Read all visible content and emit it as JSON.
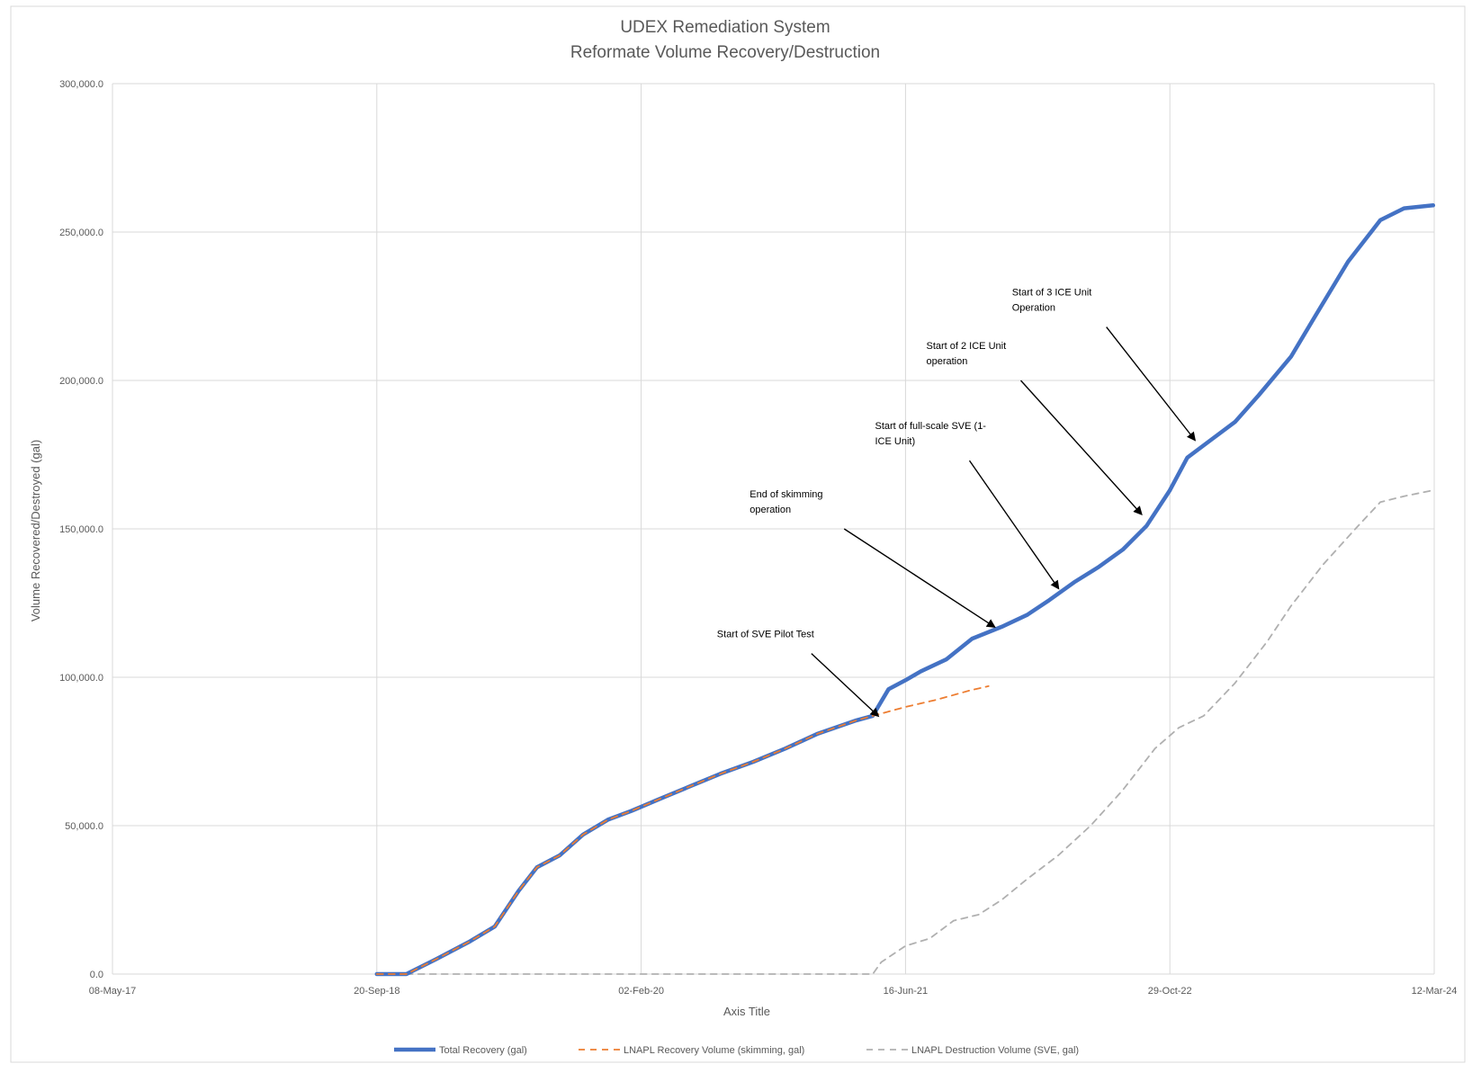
{
  "chart_data": {
    "type": "line",
    "title": "UDEX Remediation System",
    "subtitle": "Reformate Volume Recovery/Destruction",
    "xlabel": "Axis Title",
    "ylabel": "Volume Recovered/Destroyed (gal)",
    "x_range": [
      "2017-05-08",
      "2024-03-12"
    ],
    "ylim": [
      0,
      300000
    ],
    "x_ticks": [
      {
        "date": "2017-05-08",
        "label": "08-May-17"
      },
      {
        "date": "2018-09-20",
        "label": "20-Sep-18"
      },
      {
        "date": "2020-02-02",
        "label": "02-Feb-20"
      },
      {
        "date": "2021-06-16",
        "label": "16-Jun-21"
      },
      {
        "date": "2022-10-29",
        "label": "29-Oct-22"
      },
      {
        "date": "2024-03-12",
        "label": "12-Mar-24"
      }
    ],
    "y_ticks": [
      {
        "value": 0,
        "label": "0.0"
      },
      {
        "value": 50000,
        "label": "50,000.0"
      },
      {
        "value": 100000,
        "label": "100,000.0"
      },
      {
        "value": 150000,
        "label": "150,000.0"
      },
      {
        "value": 200000,
        "label": "200,000.0"
      },
      {
        "value": 250000,
        "label": "250,000.0"
      },
      {
        "value": 300000,
        "label": "300,000.0"
      }
    ],
    "grid": true,
    "legend_position": "bottom",
    "series": [
      {
        "name": "Total Recovery (gal)",
        "color": "#4472c4",
        "style": "solid",
        "points": [
          [
            "2018-09-20",
            0
          ],
          [
            "2018-11-15",
            0
          ],
          [
            "2019-01-10",
            5000
          ],
          [
            "2019-03-15",
            11000
          ],
          [
            "2019-05-01",
            16000
          ],
          [
            "2019-06-15",
            28000
          ],
          [
            "2019-07-20",
            36000
          ],
          [
            "2019-09-01",
            40000
          ],
          [
            "2019-10-15",
            47000
          ],
          [
            "2019-12-01",
            52000
          ],
          [
            "2020-01-15",
            55000
          ],
          [
            "2020-03-01",
            58500
          ],
          [
            "2020-05-01",
            63000
          ],
          [
            "2020-07-01",
            67500
          ],
          [
            "2020-09-01",
            71500
          ],
          [
            "2020-11-01",
            76000
          ],
          [
            "2021-01-01",
            81000
          ],
          [
            "2021-03-15",
            85500
          ],
          [
            "2021-04-15",
            87000
          ],
          [
            "2021-05-15",
            96000
          ],
          [
            "2021-06-16",
            99000
          ],
          [
            "2021-07-15",
            102000
          ],
          [
            "2021-09-01",
            106000
          ],
          [
            "2021-10-20",
            113000
          ],
          [
            "2021-12-15",
            117000
          ],
          [
            "2022-02-01",
            121000
          ],
          [
            "2022-03-15",
            126000
          ],
          [
            "2022-05-01",
            132000
          ],
          [
            "2022-06-15",
            137000
          ],
          [
            "2022-08-01",
            143000
          ],
          [
            "2022-09-15",
            151000
          ],
          [
            "2022-10-29",
            163000
          ],
          [
            "2022-12-01",
            174000
          ],
          [
            "2023-01-15",
            180000
          ],
          [
            "2023-03-01",
            186000
          ],
          [
            "2023-04-15",
            195000
          ],
          [
            "2023-06-15",
            208000
          ],
          [
            "2023-08-01",
            222000
          ],
          [
            "2023-10-01",
            240000
          ],
          [
            "2023-12-01",
            254000
          ],
          [
            "2024-01-15",
            258000
          ],
          [
            "2024-03-10",
            259000
          ]
        ]
      },
      {
        "name": "LNAPL Recovery Volume (skimming, gal)",
        "color": "#ed7d31",
        "style": "dashed",
        "points": [
          [
            "2018-09-20",
            0
          ],
          [
            "2018-11-15",
            0
          ],
          [
            "2019-01-10",
            5000
          ],
          [
            "2019-03-15",
            11000
          ],
          [
            "2019-05-01",
            16000
          ],
          [
            "2019-06-15",
            28000
          ],
          [
            "2019-07-20",
            36000
          ],
          [
            "2019-09-01",
            40000
          ],
          [
            "2019-10-15",
            47000
          ],
          [
            "2019-12-01",
            52000
          ],
          [
            "2020-01-15",
            55000
          ],
          [
            "2020-03-01",
            58500
          ],
          [
            "2020-05-01",
            63000
          ],
          [
            "2020-07-01",
            67500
          ],
          [
            "2020-09-01",
            71500
          ],
          [
            "2020-11-01",
            76000
          ],
          [
            "2021-01-01",
            81000
          ],
          [
            "2021-03-15",
            85500
          ],
          [
            "2021-04-15",
            87000
          ],
          [
            "2021-06-16",
            90000
          ],
          [
            "2021-08-15",
            92500
          ],
          [
            "2021-10-15",
            95500
          ],
          [
            "2021-11-20",
            97000
          ]
        ]
      },
      {
        "name": "LNAPL Destruction Volume (SVE, gal)",
        "color": "#b0b0b0",
        "style": "dashed",
        "points": [
          [
            "2018-11-15",
            0
          ],
          [
            "2021-04-15",
            0
          ],
          [
            "2021-05-01",
            4000
          ],
          [
            "2021-06-16",
            9500
          ],
          [
            "2021-08-01",
            12000
          ],
          [
            "2021-09-15",
            18000
          ],
          [
            "2021-11-01",
            20000
          ],
          [
            "2021-12-15",
            25000
          ],
          [
            "2022-02-01",
            32000
          ],
          [
            "2022-04-01",
            40000
          ],
          [
            "2022-06-01",
            50000
          ],
          [
            "2022-08-01",
            62000
          ],
          [
            "2022-10-01",
            76000
          ],
          [
            "2022-11-15",
            83000
          ],
          [
            "2023-01-01",
            87000
          ],
          [
            "2023-03-01",
            98000
          ],
          [
            "2023-05-01",
            112000
          ],
          [
            "2023-06-15",
            124000
          ],
          [
            "2023-08-15",
            138000
          ],
          [
            "2023-10-15",
            150000
          ],
          [
            "2023-12-01",
            159000
          ],
          [
            "2024-01-15",
            161000
          ],
          [
            "2024-03-10",
            163000
          ]
        ]
      }
    ],
    "annotations": [
      {
        "lines": [
          "Start of SVE Pilot Test"
        ],
        "target": [
          "2021-04-25",
          87000
        ],
        "arrow_from": [
          "2020-12-20",
          108000
        ]
      },
      {
        "lines": [
          "End of skimming",
          "operation"
        ],
        "target": [
          "2021-12-01",
          117000
        ],
        "arrow_from": [
          "2021-02-20",
          150000
        ]
      },
      {
        "lines": [
          "Start of full-scale SVE (1-",
          "ICE Unit)"
        ],
        "target": [
          "2022-04-01",
          130000
        ],
        "arrow_from": [
          "2021-10-15",
          173000
        ]
      },
      {
        "lines": [
          "Start of 2 ICE Unit",
          "operation"
        ],
        "target": [
          "2022-09-05",
          155000
        ],
        "arrow_from": [
          "2022-01-20",
          200000
        ]
      },
      {
        "lines": [
          "Start of 3 ICE Unit",
          "Operation"
        ],
        "target": [
          "2022-12-15",
          180000
        ],
        "arrow_from": [
          "2022-07-01",
          218000
        ]
      }
    ]
  }
}
